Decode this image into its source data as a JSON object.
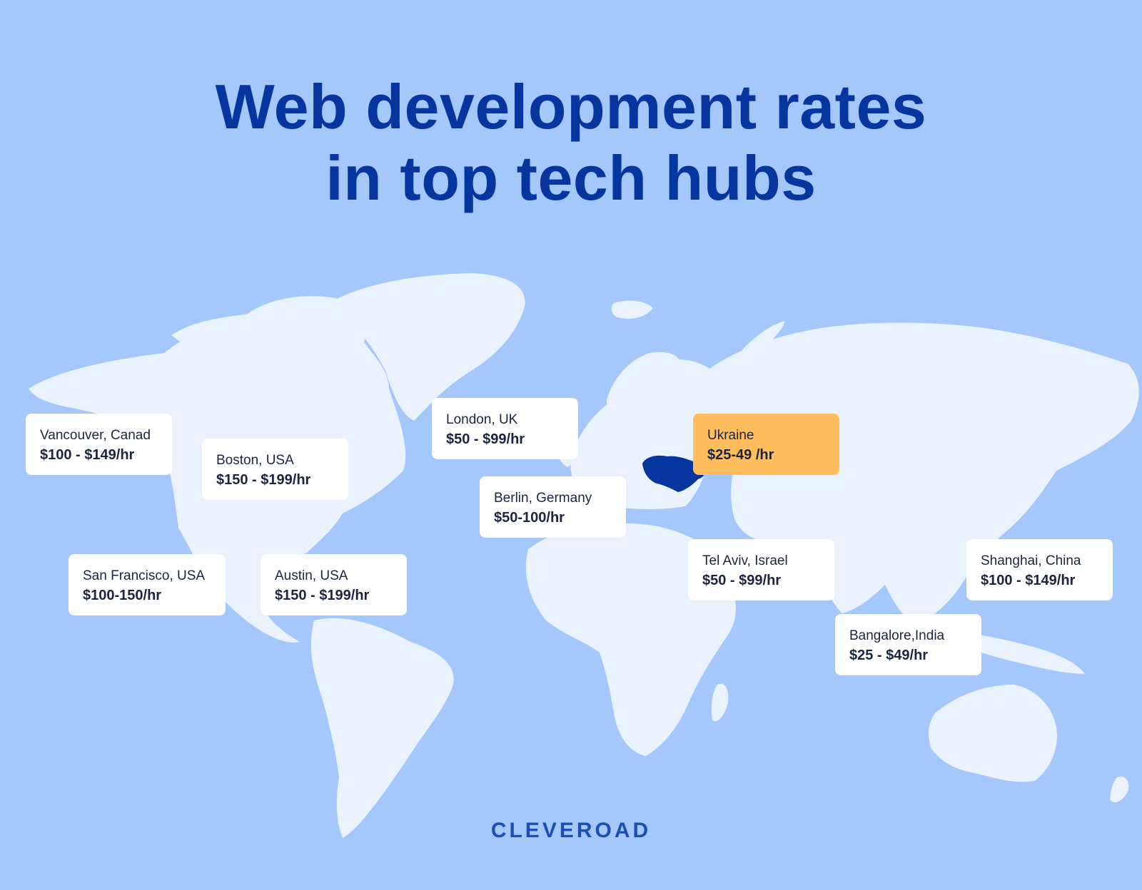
{
  "title": {
    "line1": "Web development rates",
    "line2": "in top tech hubs"
  },
  "colors": {
    "background": "#a4c7fc",
    "land": "#eaf2fe",
    "title": "#0735a0",
    "highlight_card": "#ffbe5e",
    "highlight_country": "#0735a0"
  },
  "locations": [
    {
      "city": "Vancouver, Canad",
      "rate": "$100 - $149/hr"
    },
    {
      "city": "Boston, USA",
      "rate": "$150 - $199/hr"
    },
    {
      "city": "San Francisco, USA",
      "rate": "$100-150/hr"
    },
    {
      "city": "Austin, USA",
      "rate": "$150 - $199/hr"
    },
    {
      "city": "London, UK",
      "rate": "$50 - $99/hr"
    },
    {
      "city": "Berlin, Germany",
      "rate": "$50-100/hr"
    },
    {
      "city": "Ukraine",
      "rate": "$25-49 /hr",
      "highlighted": true
    },
    {
      "city": "Tel Aviv, Israel",
      "rate": "$50 - $99/hr"
    },
    {
      "city": "Shanghai, China",
      "rate": "$100 - $149/hr"
    },
    {
      "city": "Bangalore,India",
      "rate": "$25 - $49/hr"
    }
  ],
  "logo": "CLEVEROAD"
}
